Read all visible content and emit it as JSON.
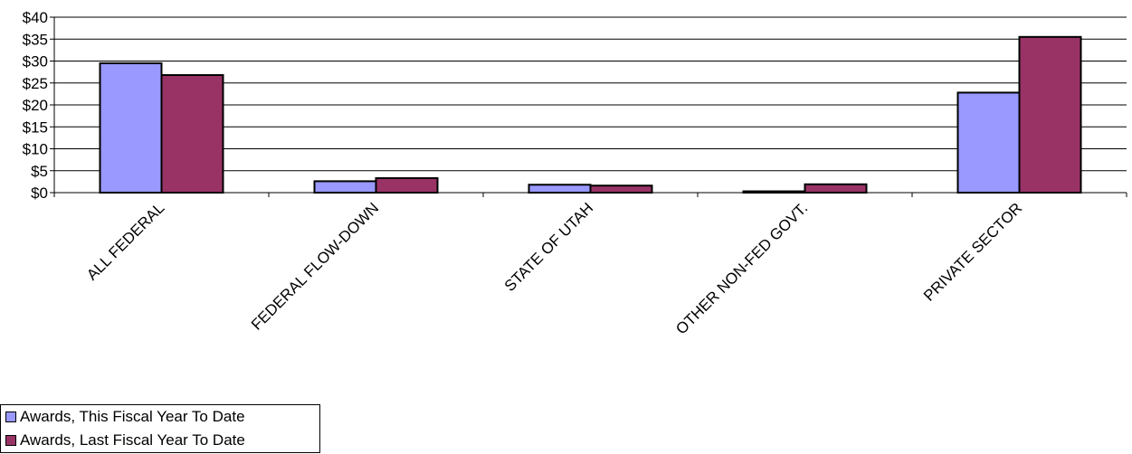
{
  "chart_data": {
    "type": "bar",
    "title": "",
    "xlabel": "",
    "ylabel": "",
    "ylim": [
      0,
      40
    ],
    "yticks": [
      "$0",
      "$5",
      "$10",
      "$15",
      "$20",
      "$25",
      "$30",
      "$35",
      "$40"
    ],
    "categories": [
      "ALL FEDERAL",
      "FEDERAL FLOW-DOWN",
      "STATE OF UTAH",
      "OTHER NON-FED GOVT.",
      "PRIVATE SECTOR"
    ],
    "series": [
      {
        "name": "Awards, This Fiscal Year To Date",
        "color": "#9999ff",
        "values": [
          29.5,
          2.6,
          1.8,
          0.3,
          22.8
        ]
      },
      {
        "name": "Awards, Last Fiscal Year To Date",
        "color": "#993366",
        "values": [
          26.8,
          3.3,
          1.6,
          1.9,
          35.5
        ]
      }
    ],
    "grid": true,
    "legend_position": "bottom-left"
  }
}
